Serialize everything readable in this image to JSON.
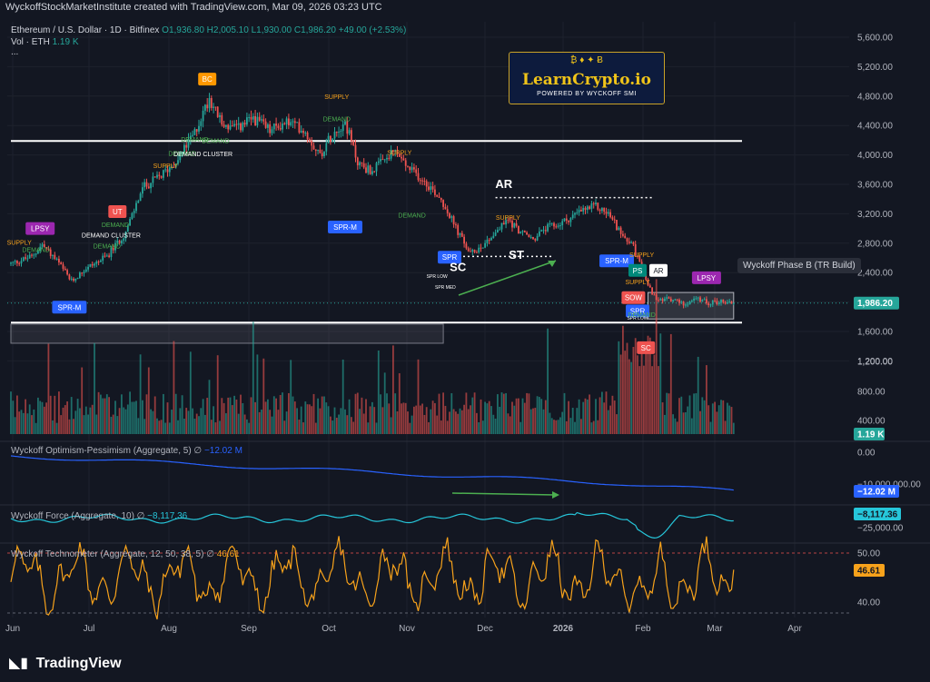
{
  "header": {
    "text": "WyckoffStockMarketInstitute created with TradingView.com, Mar 09, 2026 03:23 UTC"
  },
  "legend": {
    "symbol": "Ethereum / U.S. Dollar · 1D · Bitfinex",
    "ohlc": "O1,936.80 H2,005.10 L1,930.00 C1,986.20 +49.00 (+2.53%)",
    "volume_label": "Vol · ETH",
    "volume_value": "1.19 K",
    "more": "..."
  },
  "logo": {
    "brand": "LearnCrypto.io",
    "tagline": "POWERED BY WYCKOFF SMI",
    "coins": "₿   ♦   ✦   Ƀ"
  },
  "phase_label": "Wyckoff Phase B (TR Build)",
  "panes": {
    "optimism": {
      "label": "Wyckoff Optimism-Pessimism (Aggregate, 5)  ∅",
      "value": "−12.02 M"
    },
    "force": {
      "label": "Wyckoff Force (Aggregate, 10)  ∅",
      "value": "−8,117.36"
    },
    "technometer": {
      "label": "Wyckoff Technometer (Aggregate, 12, 50, 38, 5)  ∅",
      "value": "46.61"
    }
  },
  "tradingview_logo": "TradingView",
  "colors": {
    "up": "#26a69a",
    "down": "#ef5350",
    "blue": "#2962ff",
    "cyan": "#26c6da",
    "orange": "#f7a21b",
    "supply": "#f7a21b",
    "demand": "#4caf50",
    "purple": "#9c27b0"
  },
  "chart_data": {
    "type": "candlestick",
    "price_axis": {
      "ticks": [
        "5,600.00",
        "5,200.00",
        "4,800.00",
        "4,400.00",
        "4,000.00",
        "3,600.00",
        "3,200.00",
        "2,800.00",
        "2,400.00",
        "2,000.00",
        "1,600.00",
        "1,200.00"
      ],
      "last_price": "1,986.20",
      "ylim": [
        1200,
        5800
      ]
    },
    "volume_axis": {
      "ticks": [
        "1,200.00",
        "800.00",
        "400.00"
      ],
      "last": "1.19 K"
    },
    "optimism_axis": {
      "ticks": [
        "0.00",
        "−10,000,000.00"
      ],
      "last": "−12.02 M"
    },
    "force_axis": {
      "ticks": [
        "−25,000.00"
      ],
      "last": "−8,117.36"
    },
    "technometer_axis": {
      "ticks": [
        "50.00",
        "40.00"
      ],
      "last": "46.61"
    },
    "time_axis": [
      "Jun",
      "Jul",
      "Aug",
      "Sep",
      "Oct",
      "Nov",
      "Dec",
      "2026",
      "Feb",
      "Mar",
      "Apr"
    ],
    "price_anchors": [
      {
        "d": 0,
        "p": 2520
      },
      {
        "d": 10,
        "p": 2620
      },
      {
        "d": 15,
        "p": 2780
      },
      {
        "d": 22,
        "p": 2560
      },
      {
        "d": 29,
        "p": 2280
      },
      {
        "d": 36,
        "p": 2460
      },
      {
        "d": 46,
        "p": 2620
      },
      {
        "d": 55,
        "p": 2950
      },
      {
        "d": 63,
        "p": 3550
      },
      {
        "d": 72,
        "p": 3720
      },
      {
        "d": 80,
        "p": 3950
      },
      {
        "d": 88,
        "p": 4300
      },
      {
        "d": 95,
        "p": 4780
      },
      {
        "d": 101,
        "p": 4420
      },
      {
        "d": 108,
        "p": 4350
      },
      {
        "d": 116,
        "p": 4500
      },
      {
        "d": 124,
        "p": 4330
      },
      {
        "d": 132,
        "p": 4450
      },
      {
        "d": 140,
        "p": 4350
      },
      {
        "d": 148,
        "p": 4000
      },
      {
        "d": 154,
        "p": 4300
      },
      {
        "d": 160,
        "p": 4450
      },
      {
        "d": 166,
        "p": 3900
      },
      {
        "d": 172,
        "p": 3780
      },
      {
        "d": 178,
        "p": 3900
      },
      {
        "d": 184,
        "p": 4050
      },
      {
        "d": 190,
        "p": 3820
      },
      {
        "d": 198,
        "p": 3650
      },
      {
        "d": 206,
        "p": 3400
      },
      {
        "d": 214,
        "p": 2950
      },
      {
        "d": 220,
        "p": 2650
      },
      {
        "d": 226,
        "p": 2780
      },
      {
        "d": 232,
        "p": 2950
      },
      {
        "d": 238,
        "p": 3120
      },
      {
        "d": 244,
        "p": 2950
      },
      {
        "d": 250,
        "p": 2850
      },
      {
        "d": 256,
        "p": 3000
      },
      {
        "d": 262,
        "p": 3050
      },
      {
        "d": 268,
        "p": 3150
      },
      {
        "d": 274,
        "p": 3250
      },
      {
        "d": 280,
        "p": 3300
      },
      {
        "d": 286,
        "p": 3200
      },
      {
        "d": 292,
        "p": 2950
      },
      {
        "d": 298,
        "p": 2750
      },
      {
        "d": 302,
        "p": 2450
      },
      {
        "d": 306,
        "p": 2200
      },
      {
        "d": 309,
        "p": 2000
      },
      {
        "d": 315,
        "p": 2050
      },
      {
        "d": 322,
        "p": 1980
      },
      {
        "d": 328,
        "p": 2040
      },
      {
        "d": 334,
        "p": 1990
      },
      {
        "d": 340,
        "p": 2010
      },
      {
        "d": 346,
        "p": 1986
      }
    ],
    "price_levels": [
      {
        "price": 4190,
        "from_day": 0,
        "to_day": 350,
        "color": "#ffffff"
      },
      {
        "price": 1720,
        "from_day": 0,
        "to_day": 350,
        "color": "#ffffff"
      }
    ],
    "dotted_levels": [
      {
        "price": 3420,
        "from_day": 232,
        "to_day": 308
      },
      {
        "price": 2620,
        "from_day": 210,
        "to_day": 260
      }
    ],
    "labels": [
      {
        "text": "LPSY",
        "d": 14,
        "p": 3000,
        "kind": "box",
        "color": "#9c27b0"
      },
      {
        "text": "SPR-M",
        "d": 28,
        "p": 1930,
        "kind": "box",
        "color": "#2962ff"
      },
      {
        "text": "UT",
        "d": 51,
        "p": 3230,
        "kind": "box",
        "color": "#ef5350"
      },
      {
        "text": "BC",
        "d": 94,
        "p": 5030,
        "kind": "box",
        "color": "#ff9800"
      },
      {
        "text": "SPR-M",
        "d": 160,
        "p": 3020,
        "kind": "box",
        "color": "#2962ff"
      },
      {
        "text": "SPR",
        "d": 210,
        "p": 2610,
        "kind": "box",
        "color": "#2962ff"
      },
      {
        "text": "SPR-M",
        "d": 290,
        "p": 2560,
        "kind": "box",
        "color": "#2962ff"
      },
      {
        "text": "PS",
        "d": 300,
        "p": 2430,
        "kind": "box",
        "color": "#00897b"
      },
      {
        "text": "AR",
        "d": 310,
        "p": 2430,
        "kind": "box",
        "color": "#ffffff"
      },
      {
        "text": "LPSY",
        "d": 333,
        "p": 2330,
        "kind": "box",
        "color": "#9c27b0"
      },
      {
        "text": "SOW",
        "d": 298,
        "p": 2060,
        "kind": "box",
        "color": "#ef5350"
      },
      {
        "text": "SPR",
        "d": 300,
        "p": 1880,
        "kind": "box",
        "color": "#2962ff"
      },
      {
        "text": "SC",
        "d": 304,
        "p": 1380,
        "kind": "box",
        "color": "#ef5350"
      },
      {
        "text": "AR",
        "d": 236,
        "p": 3550,
        "kind": "big",
        "color": "#ffffff"
      },
      {
        "text": "ST",
        "d": 242,
        "p": 2590,
        "kind": "big",
        "color": "#ffffff"
      },
      {
        "text": "SC",
        "d": 214,
        "p": 2420,
        "kind": "big",
        "color": "#ffffff"
      },
      {
        "text": "SUPPLY",
        "d": 4,
        "p": 2780,
        "kind": "text",
        "color": "#f7a21b"
      },
      {
        "text": "DEMAND",
        "d": 12,
        "p": 2680,
        "kind": "text",
        "color": "#4caf50"
      },
      {
        "text": "DEMAND CLUSTER",
        "d": 48,
        "p": 2880,
        "kind": "text",
        "color": "#ffffff"
      },
      {
        "text": "DEMAND",
        "d": 50,
        "p": 3020,
        "kind": "text",
        "color": "#4caf50"
      },
      {
        "text": "DEMAND",
        "d": 46,
        "p": 2730,
        "kind": "text",
        "color": "#4caf50"
      },
      {
        "text": "SUPPLY",
        "d": 74,
        "p": 3820,
        "kind": "text",
        "color": "#f7a21b"
      },
      {
        "text": "DEMAND",
        "d": 82,
        "p": 3990,
        "kind": "text",
        "color": "#4caf50"
      },
      {
        "text": "DEMAND CLUSTER",
        "d": 92,
        "p": 3980,
        "kind": "text",
        "color": "#ffffff"
      },
      {
        "text": "DEMAND",
        "d": 88,
        "p": 4180,
        "kind": "text",
        "color": "#4caf50"
      },
      {
        "text": "DEMAND",
        "d": 98,
        "p": 4160,
        "kind": "text",
        "color": "#4caf50"
      },
      {
        "text": "SUPPLY",
        "d": 156,
        "p": 4760,
        "kind": "text",
        "color": "#f7a21b"
      },
      {
        "text": "DEMAND",
        "d": 156,
        "p": 4460,
        "kind": "text",
        "color": "#4caf50"
      },
      {
        "text": "SUPPLY",
        "d": 186,
        "p": 4000,
        "kind": "text",
        "color": "#f7a21b"
      },
      {
        "text": "DEMAND",
        "d": 192,
        "p": 3150,
        "kind": "text",
        "color": "#4caf50"
      },
      {
        "text": "SUPPLY",
        "d": 238,
        "p": 3120,
        "kind": "text",
        "color": "#f7a21b"
      },
      {
        "text": "SPR LOW",
        "d": 204,
        "p": 2330,
        "kind": "small",
        "color": "#ffffff"
      },
      {
        "text": "SPR MED",
        "d": 208,
        "p": 2180,
        "kind": "small",
        "color": "#ffffff"
      },
      {
        "text": "SUPPLY",
        "d": 300,
        "p": 2240,
        "kind": "text",
        "color": "#f7a21b"
      },
      {
        "text": "SUPPLY",
        "d": 302,
        "p": 2610,
        "kind": "text",
        "color": "#f7a21b"
      },
      {
        "text": "SPR LOW",
        "d": 300,
        "p": 1760,
        "kind": "small",
        "color": "#ffffff"
      },
      {
        "text": "DEMAND",
        "d": 302,
        "p": 1800,
        "kind": "text",
        "color": "#4caf50"
      }
    ],
    "zones": [
      {
        "from_day": 0,
        "to_day": 207,
        "top": 1700,
        "bottom": 1440,
        "color": "#787b86"
      },
      {
        "from_day": 305,
        "to_day": 346,
        "top": 2130,
        "bottom": 1770,
        "color": "#b2b5be"
      }
    ]
  }
}
